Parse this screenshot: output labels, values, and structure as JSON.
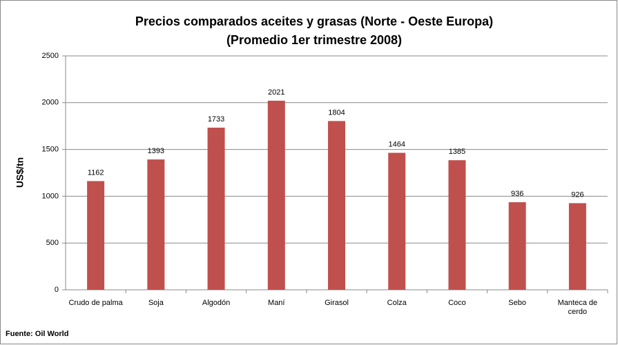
{
  "chart_data": {
    "type": "bar",
    "title": [
      "Precios comparados aceites y grasas (Norte - Oeste Europa)",
      "(Promedio 1er trimestre 2008)"
    ],
    "y_label": "US$/tn",
    "source": "Fuente: Oil World",
    "categories": [
      "Crudo de palma",
      "Soja",
      "Algodón",
      "Maní",
      "Girasol",
      "Colza",
      "Coco",
      "Sebo",
      "Manteca de cerdo"
    ],
    "values": [
      1162,
      1393,
      1733,
      2021,
      1804,
      1464,
      1385,
      936,
      926
    ],
    "color": "#c0504d",
    "ylim": [
      0,
      2500
    ],
    "yticks": [
      0,
      500,
      1000,
      1500,
      2000,
      2500
    ],
    "grid": true
  }
}
